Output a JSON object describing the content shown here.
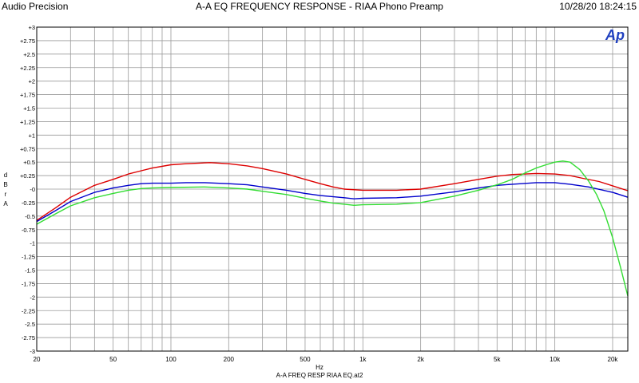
{
  "header": {
    "brand": "Audio Precision",
    "title": "A-A EQ FREQUENCY RESPONSE - RIAA Phono Preamp",
    "timestamp": "10/28/20 18:24:15",
    "logo_text": "Ap"
  },
  "footer": {
    "filename": "A-A FREQ RESP RIAA EQ.at2"
  },
  "chart_data": {
    "type": "line",
    "title": "A-A EQ FREQUENCY RESPONSE - RIAA Phono Preamp",
    "xlabel": "Hz",
    "ylabel": "d B r  A",
    "xscale": "log",
    "xlim": [
      20,
      24000
    ],
    "ylim": [
      -3,
      3
    ],
    "grid": true,
    "x_ticks": [
      {
        "v": 20,
        "label": "20"
      },
      {
        "v": 50,
        "label": "50"
      },
      {
        "v": 100,
        "label": "100"
      },
      {
        "v": 200,
        "label": "200"
      },
      {
        "v": 500,
        "label": "500"
      },
      {
        "v": 1000,
        "label": "1k"
      },
      {
        "v": 2000,
        "label": "2k"
      },
      {
        "v": 5000,
        "label": "5k"
      },
      {
        "v": 10000,
        "label": "10k"
      },
      {
        "v": 20000,
        "label": "20k"
      }
    ],
    "y_ticks": [
      {
        "v": 3,
        "label": "+3"
      },
      {
        "v": 2.75,
        "label": "+2.75"
      },
      {
        "v": 2.5,
        "label": "+2.5"
      },
      {
        "v": 2.25,
        "label": "+2.25"
      },
      {
        "v": 2,
        "label": "+2"
      },
      {
        "v": 1.75,
        "label": "+1.75"
      },
      {
        "v": 1.5,
        "label": "+1.5"
      },
      {
        "v": 1.25,
        "label": "+1.25"
      },
      {
        "v": 1,
        "label": "+1"
      },
      {
        "v": 0.75,
        "label": "+0.75"
      },
      {
        "v": 0.5,
        "label": "+0.5"
      },
      {
        "v": 0.25,
        "label": "+0.25"
      },
      {
        "v": 0,
        "label": "-0"
      },
      {
        "v": -0.25,
        "label": "-0.25"
      },
      {
        "v": -0.5,
        "label": "-0.5"
      },
      {
        "v": -0.75,
        "label": "-0.75"
      },
      {
        "v": -1,
        "label": "-1"
      },
      {
        "v": -1.25,
        "label": "-1.25"
      },
      {
        "v": -1.5,
        "label": "-1.5"
      },
      {
        "v": -1.75,
        "label": "-1.75"
      },
      {
        "v": -2,
        "label": "-2"
      },
      {
        "v": -2.25,
        "label": "-2.25"
      },
      {
        "v": -2.5,
        "label": "-2.5"
      },
      {
        "v": -2.75,
        "label": "-2.75"
      },
      {
        "v": -3,
        "label": "-3"
      }
    ],
    "series": [
      {
        "color": "#dd0000",
        "points": [
          [
            20,
            -0.58
          ],
          [
            25,
            -0.35
          ],
          [
            30,
            -0.15
          ],
          [
            40,
            0.07
          ],
          [
            50,
            0.18
          ],
          [
            60,
            0.28
          ],
          [
            70,
            0.34
          ],
          [
            80,
            0.39
          ],
          [
            100,
            0.45
          ],
          [
            120,
            0.47
          ],
          [
            160,
            0.49
          ],
          [
            200,
            0.47
          ],
          [
            250,
            0.43
          ],
          [
            300,
            0.38
          ],
          [
            400,
            0.28
          ],
          [
            500,
            0.18
          ],
          [
            600,
            0.1
          ],
          [
            700,
            0.04
          ],
          [
            800,
            0.0
          ],
          [
            1000,
            -0.02
          ],
          [
            1500,
            -0.02
          ],
          [
            2000,
            0.0
          ],
          [
            3000,
            0.1
          ],
          [
            4000,
            0.18
          ],
          [
            5000,
            0.24
          ],
          [
            6000,
            0.27
          ],
          [
            7000,
            0.28
          ],
          [
            8000,
            0.29
          ],
          [
            10000,
            0.28
          ],
          [
            12000,
            0.25
          ],
          [
            14000,
            0.2
          ],
          [
            17000,
            0.14
          ],
          [
            20000,
            0.06
          ],
          [
            24000,
            -0.03
          ]
        ]
      },
      {
        "color": "#0000cc",
        "points": [
          [
            20,
            -0.6
          ],
          [
            25,
            -0.4
          ],
          [
            30,
            -0.23
          ],
          [
            40,
            -0.06
          ],
          [
            50,
            0.02
          ],
          [
            60,
            0.07
          ],
          [
            70,
            0.1
          ],
          [
            80,
            0.11
          ],
          [
            100,
            0.11
          ],
          [
            120,
            0.12
          ],
          [
            150,
            0.12
          ],
          [
            200,
            0.1
          ],
          [
            250,
            0.08
          ],
          [
            300,
            0.04
          ],
          [
            400,
            -0.02
          ],
          [
            500,
            -0.08
          ],
          [
            600,
            -0.12
          ],
          [
            800,
            -0.16
          ],
          [
            900,
            -0.18
          ],
          [
            1000,
            -0.17
          ],
          [
            1500,
            -0.16
          ],
          [
            2000,
            -0.13
          ],
          [
            3000,
            -0.05
          ],
          [
            4000,
            0.02
          ],
          [
            5000,
            0.07
          ],
          [
            6000,
            0.09
          ],
          [
            8000,
            0.12
          ],
          [
            10000,
            0.12
          ],
          [
            12000,
            0.09
          ],
          [
            15000,
            0.04
          ],
          [
            20000,
            -0.06
          ],
          [
            24000,
            -0.15
          ]
        ]
      },
      {
        "color": "#33dd33",
        "points": [
          [
            20,
            -0.65
          ],
          [
            25,
            -0.46
          ],
          [
            30,
            -0.31
          ],
          [
            40,
            -0.16
          ],
          [
            50,
            -0.08
          ],
          [
            60,
            -0.02
          ],
          [
            70,
            0.01
          ],
          [
            80,
            0.02
          ],
          [
            100,
            0.03
          ],
          [
            150,
            0.04
          ],
          [
            200,
            0.02
          ],
          [
            250,
            0.0
          ],
          [
            300,
            -0.04
          ],
          [
            400,
            -0.1
          ],
          [
            500,
            -0.17
          ],
          [
            600,
            -0.22
          ],
          [
            700,
            -0.26
          ],
          [
            800,
            -0.28
          ],
          [
            900,
            -0.3
          ],
          [
            1000,
            -0.29
          ],
          [
            1500,
            -0.28
          ],
          [
            2000,
            -0.25
          ],
          [
            3000,
            -0.13
          ],
          [
            4000,
            -0.02
          ],
          [
            5000,
            0.08
          ],
          [
            6000,
            0.18
          ],
          [
            7000,
            0.3
          ],
          [
            8000,
            0.39
          ],
          [
            9000,
            0.45
          ],
          [
            10000,
            0.5
          ],
          [
            11000,
            0.52
          ],
          [
            12000,
            0.5
          ],
          [
            13500,
            0.36
          ],
          [
            15000,
            0.15
          ],
          [
            16500,
            -0.1
          ],
          [
            18000,
            -0.4
          ],
          [
            20000,
            -0.9
          ],
          [
            22000,
            -1.45
          ],
          [
            24000,
            -1.98
          ]
        ]
      }
    ]
  }
}
